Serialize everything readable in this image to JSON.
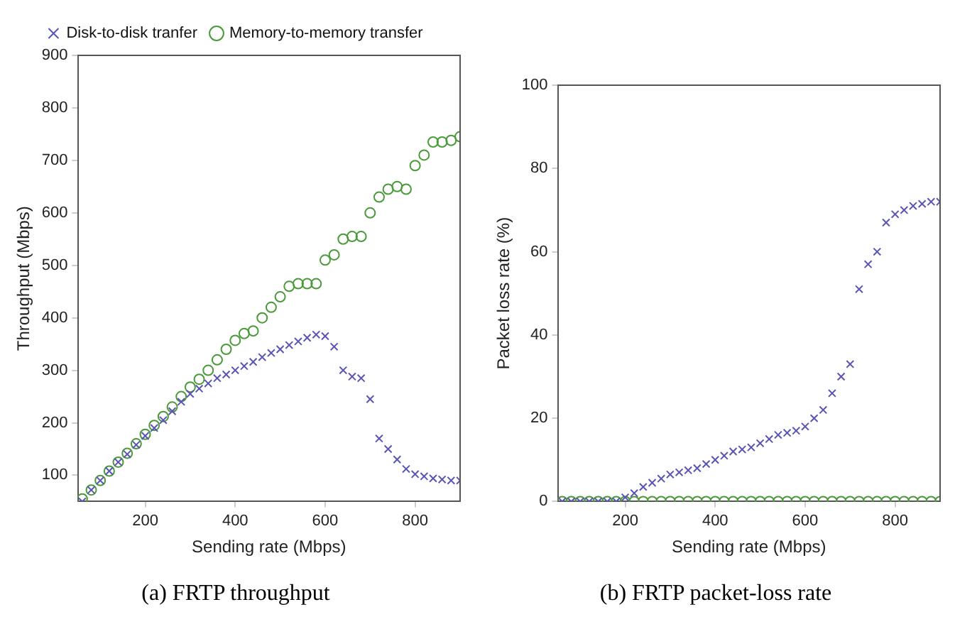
{
  "chart_data": [
    {
      "type": "scatter",
      "title": "(a) FRTP throughput",
      "xlabel": "Sending rate (Mbps)",
      "ylabel": "Throughput (Mbps)",
      "x": [
        60,
        80,
        100,
        120,
        140,
        160,
        180,
        200,
        220,
        240,
        260,
        280,
        300,
        320,
        340,
        360,
        380,
        400,
        420,
        440,
        460,
        480,
        500,
        520,
        540,
        560,
        580,
        600,
        620,
        640,
        660,
        680,
        700,
        720,
        740,
        760,
        780,
        800,
        820,
        840,
        860,
        880,
        900
      ],
      "xlim": [
        50,
        900
      ],
      "xticks": [
        200,
        400,
        600,
        800
      ],
      "ylim": [
        50,
        900
      ],
      "yticks": [
        100,
        200,
        300,
        400,
        500,
        600,
        700,
        800,
        900
      ],
      "grid": false,
      "legend": "top",
      "series": [
        {
          "name": "Disk-to-disk tranfer",
          "color": "#5a55b5",
          "marker": "cross",
          "values": [
            50,
            72,
            90,
            108,
            125,
            140,
            158,
            175,
            190,
            205,
            222,
            240,
            255,
            265,
            275,
            285,
            292,
            300,
            308,
            316,
            325,
            333,
            340,
            348,
            355,
            362,
            368,
            365,
            345,
            300,
            288,
            285,
            245,
            170,
            150,
            130,
            112,
            102,
            98,
            94,
            92,
            90,
            90
          ]
        },
        {
          "name": "Memory-to-memory transfer",
          "color": "#4a9a3a",
          "marker": "circle",
          "values": [
            55,
            72,
            90,
            108,
            125,
            142,
            160,
            178,
            195,
            212,
            230,
            250,
            268,
            283,
            300,
            320,
            340,
            357,
            370,
            375,
            400,
            420,
            440,
            460,
            465,
            465,
            465,
            510,
            520,
            550,
            555,
            555,
            600,
            630,
            645,
            650,
            645,
            690,
            710,
            735,
            735,
            738,
            745
          ]
        }
      ]
    },
    {
      "type": "scatter",
      "title": "(b) FRTP packet-loss rate",
      "xlabel": "Sending rate (Mbps)",
      "ylabel": "Packet loss rate (%)",
      "x": [
        60,
        80,
        100,
        120,
        140,
        160,
        180,
        200,
        220,
        240,
        260,
        280,
        300,
        320,
        340,
        360,
        380,
        400,
        420,
        440,
        460,
        480,
        500,
        520,
        540,
        560,
        580,
        600,
        620,
        640,
        660,
        680,
        700,
        720,
        740,
        760,
        780,
        800,
        820,
        840,
        860,
        880,
        900
      ],
      "xlim": [
        50,
        900
      ],
      "xticks": [
        200,
        400,
        600,
        800
      ],
      "ylim": [
        0,
        100
      ],
      "yticks": [
        0,
        20,
        40,
        60,
        80,
        100
      ],
      "grid": false,
      "series": [
        {
          "color": "#5a55b5",
          "marker": "cross",
          "values": [
            0,
            0,
            0,
            0,
            0,
            0,
            0,
            1,
            2,
            3.5,
            4.5,
            5.5,
            6.5,
            7,
            7.5,
            8,
            9,
            10,
            11,
            12,
            12.5,
            13,
            14,
            15,
            16,
            16.5,
            17,
            18,
            20,
            22,
            26,
            30,
            33,
            51,
            57,
            60,
            67,
            69,
            70,
            71,
            71.5,
            72,
            72
          ]
        },
        {
          "color": "#4a9a3a",
          "marker": "circle",
          "values": [
            0,
            0,
            0,
            0,
            0,
            0,
            0,
            0,
            0,
            0,
            0,
            0,
            0,
            0,
            0,
            0,
            0,
            0,
            0,
            0,
            0,
            0,
            0,
            0,
            0,
            0,
            0,
            0,
            0,
            0,
            0,
            0,
            0,
            0,
            0,
            0,
            0,
            0,
            0,
            0,
            0,
            0,
            0
          ]
        }
      ]
    }
  ]
}
